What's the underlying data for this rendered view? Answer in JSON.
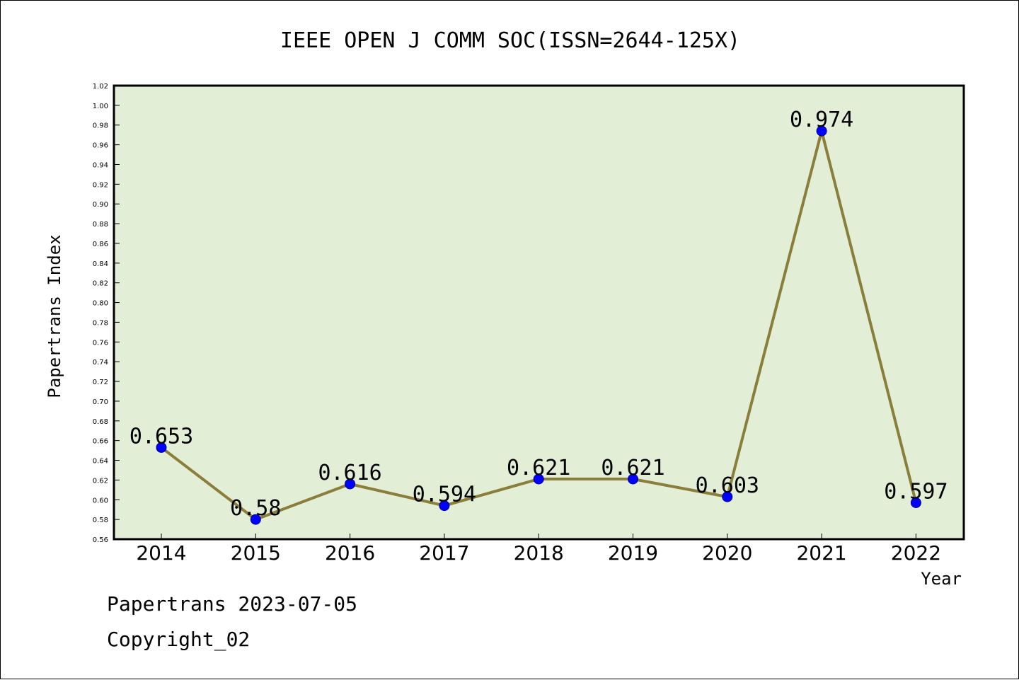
{
  "chart_data": {
    "type": "line",
    "title": "IEEE OPEN J COMM SOC(ISSN=2644-125X)",
    "xlabel": "Year",
    "ylabel": "Papertrans Index",
    "categories": [
      "2014",
      "2015",
      "2016",
      "2017",
      "2018",
      "2019",
      "2020",
      "2021",
      "2022"
    ],
    "values": [
      0.653,
      0.58,
      0.616,
      0.594,
      0.621,
      0.621,
      0.603,
      0.974,
      0.597
    ],
    "value_labels": [
      "0.653",
      "0.58",
      "0.616",
      "0.594",
      "0.621",
      "0.621",
      "0.603",
      "0.974",
      "0.597"
    ],
    "ylim": [
      0.56,
      1.02
    ],
    "yticks": [
      "0.56",
      "0.58",
      "0.60",
      "0.62",
      "0.64",
      "0.66",
      "0.68",
      "0.70",
      "0.72",
      "0.74",
      "0.76",
      "0.78",
      "0.80",
      "0.82",
      "0.84",
      "0.86",
      "0.88",
      "0.90",
      "0.92",
      "0.94",
      "0.96",
      "0.98",
      "1.00",
      "1.02"
    ],
    "grid": false,
    "colors": {
      "plot_bg": "#e2efd6",
      "line": "#8b7d3a",
      "marker": "#0000ff"
    }
  },
  "footer": {
    "line1": "Papertrans 2023-07-05",
    "line2": "Copyright_02"
  }
}
